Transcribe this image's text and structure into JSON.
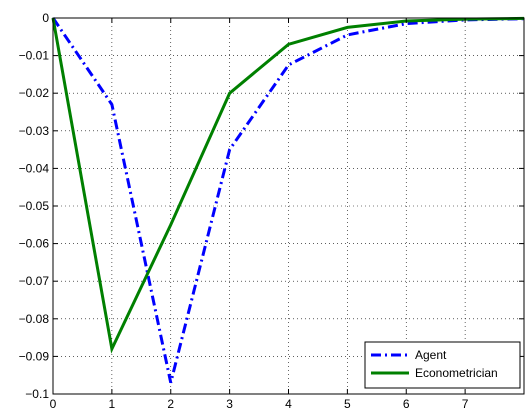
{
  "chart_data": {
    "type": "line",
    "x": [
      0,
      1,
      2,
      3,
      4,
      5,
      6,
      7,
      8
    ],
    "xlim": [
      0,
      8
    ],
    "ylim": [
      -0.1,
      0
    ],
    "xticks": [
      "0",
      "1",
      "2",
      "3",
      "4",
      "5",
      "6",
      "7"
    ],
    "yticks": [
      "0",
      "−0.01",
      "−0.02",
      "−0.03",
      "−0.04",
      "−0.05",
      "−0.06",
      "−0.07",
      "−0.08",
      "−0.09",
      "−0.1"
    ],
    "ytick_values": [
      0,
      -0.01,
      -0.02,
      -0.03,
      -0.04,
      -0.05,
      -0.06,
      -0.07,
      -0.08,
      -0.09,
      -0.1
    ],
    "grid": true,
    "legend_position": "bottom-right",
    "series": [
      {
        "name": "Agent",
        "values": [
          0,
          -0.023,
          -0.097,
          -0.035,
          -0.0125,
          -0.0045,
          -0.0015,
          -0.0005,
          -0.0002
        ],
        "color": "#0000ff",
        "style": "dash-dot"
      },
      {
        "name": "Econometrician",
        "values": [
          0,
          -0.088,
          -0.055,
          -0.02,
          -0.007,
          -0.0025,
          -0.0008,
          -0.0003,
          -0.0001
        ],
        "color": "#008000",
        "style": "solid"
      }
    ]
  }
}
